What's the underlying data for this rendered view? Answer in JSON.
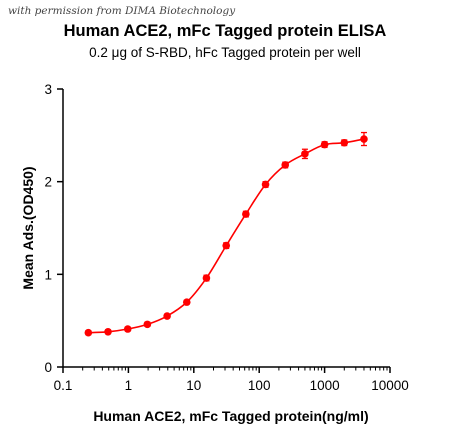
{
  "watermark": "with permission from DIMA Biotechnology",
  "chart_data": {
    "type": "scatter",
    "title": "Human ACE2, mFc Tagged protein ELISA",
    "subtitle": "0.2 μg of S-RBD, hFc Tagged protein per well",
    "xlabel": "Human ACE2, mFc Tagged protein(ng/ml)",
    "ylabel": "Mean Ads.(OD450)",
    "x_scale": "log",
    "xlim": [
      0.1,
      10000
    ],
    "ylim": [
      0,
      3
    ],
    "x_ticks": [
      0.1,
      1,
      10,
      100,
      1000,
      10000
    ],
    "x_tick_labels": [
      "0.1",
      "1",
      "10",
      "100",
      "1000",
      "10000"
    ],
    "y_ticks": [
      0,
      1,
      2,
      3
    ],
    "y_tick_labels": [
      "0",
      "1",
      "2",
      "3"
    ],
    "grid": false,
    "legend": "none",
    "fit_curve": "sigmoidal",
    "color": "#ff0000",
    "series": [
      {
        "x": [
          0.244,
          0.488,
          0.977,
          1.95,
          3.91,
          7.81,
          15.6,
          31.3,
          62.5,
          125,
          250,
          500,
          1000,
          2000,
          4000
        ],
        "y": [
          0.37,
          0.38,
          0.41,
          0.46,
          0.55,
          0.7,
          0.96,
          1.31,
          1.65,
          1.97,
          2.18,
          2.3,
          2.4,
          2.42,
          2.46
        ],
        "error": [
          0.02,
          0.02,
          0.02,
          0.02,
          0.02,
          0.02,
          0.03,
          0.03,
          0.03,
          0.03,
          0.03,
          0.05,
          0.03,
          0.03,
          0.07
        ]
      }
    ]
  }
}
